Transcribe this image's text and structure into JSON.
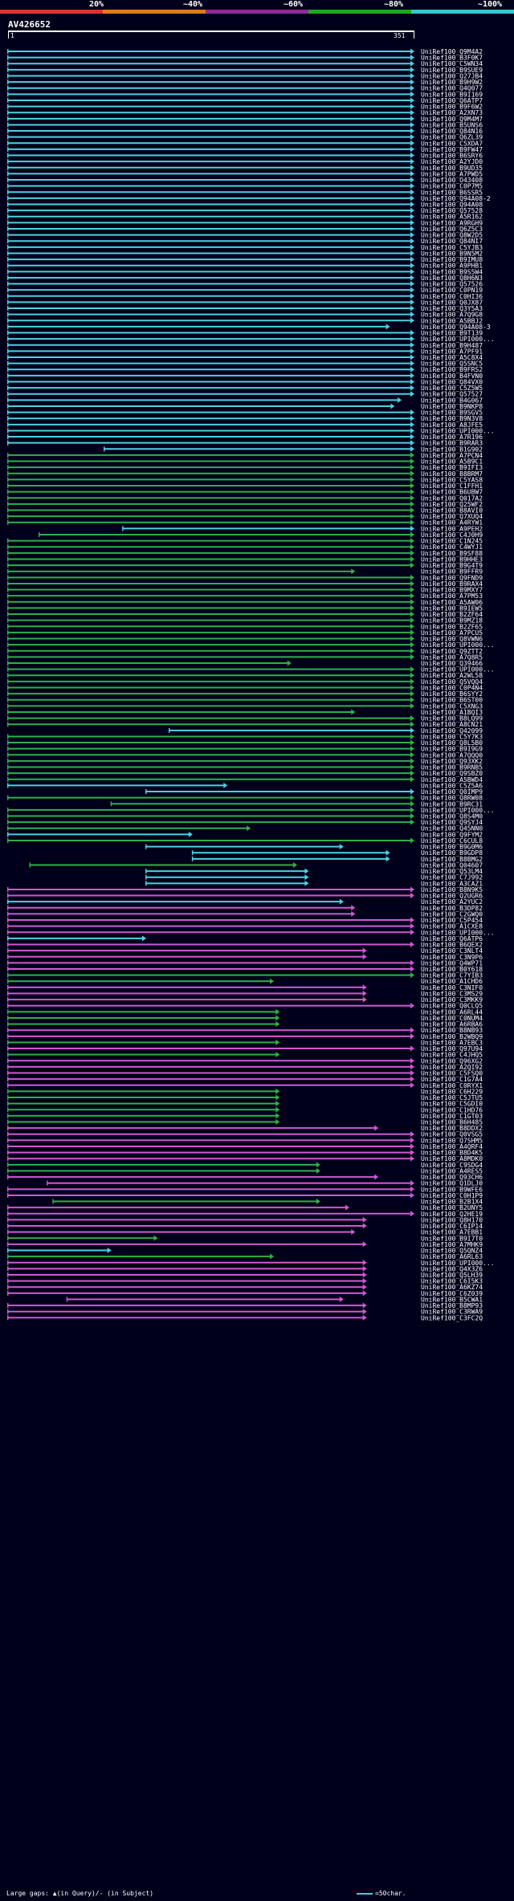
{
  "legend": {
    "items": [
      {
        "label": "20%",
        "color": "#e03030"
      },
      {
        "label": "~40%",
        "color": "#e07a1a"
      },
      {
        "label": "~60%",
        "color": "#8f2a9a"
      },
      {
        "label": "~80%",
        "color": "#1ea81e"
      },
      {
        "label": "~100%",
        "color": "#34c6d2"
      }
    ]
  },
  "query": {
    "title": "AV426652",
    "start_label": "1",
    "end_label": "351",
    "length": 351
  },
  "footer": {
    "gaps_text": "Large gaps: ▲(in Query)/- (in Subject)",
    "scale_text": "=50char."
  },
  "colors": {
    "cyan": "#4fd0e0",
    "green": "#2fb04a",
    "magenta": "#d058d0",
    "blue": "#3a4aa0",
    "white": "#ffffff"
  },
  "chart_data": {
    "type": "alignment",
    "query_length": 351,
    "hits": [
      [
        "UniRef100_Q9M4A2",
        1,
        351,
        "c"
      ],
      [
        "UniRef100_B3F0K7",
        1,
        351,
        "c"
      ],
      [
        "UniRef100_C5WN34",
        1,
        351,
        "c"
      ],
      [
        "UniRef100_B9SUE9",
        1,
        351,
        "c"
      ],
      [
        "UniRef100_Q27JB4",
        1,
        351,
        "c"
      ],
      [
        "UniRef100_B9H9W2",
        1,
        351,
        "c"
      ],
      [
        "UniRef100_Q4Q077",
        1,
        351,
        "c"
      ],
      [
        "UniRef100_B9I169",
        1,
        351,
        "c"
      ],
      [
        "UniRef100_Q6ATP7",
        1,
        351,
        "c"
      ],
      [
        "UniRef100_B9F6W2",
        1,
        351,
        "c"
      ],
      [
        "UniRef100_A2XN73",
        1,
        351,
        "c"
      ],
      [
        "UniRef100_Q9M4M7",
        1,
        351,
        "c"
      ],
      [
        "UniRef100_B5UNS6",
        1,
        351,
        "c"
      ],
      [
        "UniRef100_Q84N16",
        1,
        351,
        "c"
      ],
      [
        "UniRef100_Q6ZL39",
        1,
        351,
        "c"
      ],
      [
        "UniRef100_C5XDA7",
        1,
        351,
        "c"
      ],
      [
        "UniRef100_B9FW47",
        1,
        351,
        "c"
      ],
      [
        "UniRef100_B6SRY6",
        1,
        351,
        "c"
      ],
      [
        "UniRef100_A2YJD0",
        1,
        351,
        "c"
      ],
      [
        "UniRef100_B9UD35",
        1,
        351,
        "c"
      ],
      [
        "UniRef100_A7PWD5",
        1,
        351,
        "c"
      ],
      [
        "UniRef100_O43408",
        1,
        351,
        "c"
      ],
      [
        "UniRef100_C0P7M5",
        1,
        351,
        "c"
      ],
      [
        "UniRef100_B6SSR5",
        1,
        351,
        "c"
      ],
      [
        "UniRef100_Q94A08-2",
        1,
        351,
        "c"
      ],
      [
        "UniRef100_Q94A08",
        1,
        351,
        "c"
      ],
      [
        "UniRef100_Q57528",
        1,
        351,
        "c"
      ],
      [
        "UniRef100_A5R162",
        1,
        351,
        "c"
      ],
      [
        "UniRef100_A9RGH9",
        1,
        351,
        "c"
      ],
      [
        "UniRef100_Q6Z5C3",
        1,
        351,
        "c"
      ],
      [
        "UniRef100_Q8W2D5",
        1,
        351,
        "c"
      ],
      [
        "UniRef100_Q84NI7",
        1,
        351,
        "c"
      ],
      [
        "UniRef100_C5YJB3",
        1,
        351,
        "c"
      ],
      [
        "UniRef100_B9N5M2",
        1,
        351,
        "c"
      ],
      [
        "UniRef100_B9IMU8",
        1,
        351,
        "c"
      ],
      [
        "UniRef100_A9PHB1",
        1,
        351,
        "c"
      ],
      [
        "UniRef100_B9S5W4",
        1,
        351,
        "c"
      ],
      [
        "UniRef100_Q8H6N3",
        1,
        351,
        "c"
      ],
      [
        "UniRef100_Q57526",
        1,
        351,
        "c"
      ],
      [
        "UniRef100_C0PN19",
        1,
        351,
        "c"
      ],
      [
        "UniRef100_C0HI36",
        1,
        351,
        "c"
      ],
      [
        "UniRef100_Q0JX87",
        1,
        351,
        "c"
      ],
      [
        "UniRef100_Q3Y5A3",
        1,
        351,
        "c"
      ],
      [
        "UniRef100_A7Q9G8",
        1,
        351,
        "c"
      ],
      [
        "UniRef100_A5BBJ2",
        1,
        351,
        "c"
      ],
      [
        "UniRef100_Q94A08-3",
        1,
        330,
        "c"
      ],
      [
        "UniRef100_B9T139",
        1,
        351,
        "c"
      ],
      [
        "UniRef100_UPI000...",
        1,
        351,
        "c"
      ],
      [
        "UniRef100_B9H487",
        1,
        351,
        "c"
      ],
      [
        "UniRef100_A7PF91",
        1,
        351,
        "c"
      ],
      [
        "UniRef100_A5C8X4",
        1,
        351,
        "c"
      ],
      [
        "UniRef100_Q5SNC5",
        1,
        351,
        "c"
      ],
      [
        "UniRef100_B9FRS2",
        1,
        351,
        "c"
      ],
      [
        "UniRef100_B4FVN0",
        1,
        351,
        "c"
      ],
      [
        "UniRef100_Q84VX0",
        1,
        351,
        "c"
      ],
      [
        "UniRef100_C5Z5W5",
        1,
        351,
        "c"
      ],
      [
        "UniRef100_Q57527",
        1,
        351,
        "c"
      ],
      [
        "UniRef100_B4G067",
        1,
        340,
        "c"
      ],
      [
        "UniRef100_B9NKP8",
        1,
        334,
        "c"
      ],
      [
        "UniRef100_B9SGV5",
        1,
        351,
        "c"
      ],
      [
        "UniRef100_B9N3V8",
        1,
        351,
        "c"
      ],
      [
        "UniRef100_A8JFE5",
        1,
        351,
        "c"
      ],
      [
        "UniRef100_UPI000...",
        1,
        351,
        "c"
      ],
      [
        "UniRef100_A7R196",
        1,
        351,
        "c"
      ],
      [
        "UniRef100_B9RAR3",
        1,
        351,
        "c"
      ],
      [
        "UniRef100_B1G902",
        84,
        351,
        "c"
      ],
      [
        "UniRef100_A7PCN4",
        1,
        351,
        "g"
      ],
      [
        "UniRef100_A5B9C1",
        1,
        351,
        "g"
      ],
      [
        "UniRef100_B9IFI3",
        1,
        351,
        "g"
      ],
      [
        "UniRef100_B8BRM7",
        1,
        351,
        "g"
      ],
      [
        "UniRef100_C5YAS8",
        1,
        351,
        "g"
      ],
      [
        "UniRef100_C1FFH1",
        1,
        351,
        "g"
      ],
      [
        "UniRef100_B6UBW7",
        1,
        351,
        "g"
      ],
      [
        "UniRef100_Q017A2",
        1,
        351,
        "g"
      ],
      [
        "UniRef100_Q25WF2",
        1,
        351,
        "g"
      ],
      [
        "UniRef100_B8AVI0",
        1,
        351,
        "g"
      ],
      [
        "UniRef100_Q7XUQ4",
        1,
        351,
        "g"
      ],
      [
        "UniRef100_A4RYW1",
        1,
        351,
        "g"
      ],
      [
        "UniRef100_A9PEH2",
        100,
        351,
        "c"
      ],
      [
        "UniRef100_C4J0H9",
        28,
        351,
        "g"
      ],
      [
        "UniRef100_C1N245",
        1,
        351,
        "g"
      ],
      [
        "UniRef100_C4WYJ1",
        1,
        351,
        "g"
      ],
      [
        "UniRef100_B9SF88",
        1,
        351,
        "g"
      ],
      [
        "UniRef100_B9HHE3",
        1,
        351,
        "g"
      ],
      [
        "UniRef100_B9G4T9",
        1,
        351,
        "g"
      ],
      [
        "UniRef100_B9FFR9",
        1,
        300,
        "g"
      ],
      [
        "UniRef100_Q9FND9",
        1,
        351,
        "g"
      ],
      [
        "UniRef100_B9RAX4",
        1,
        351,
        "g"
      ],
      [
        "UniRef100_B9MXY7",
        1,
        351,
        "g"
      ],
      [
        "UniRef100_A7PM53",
        1,
        351,
        "g"
      ],
      [
        "UniRef100_A5AW06",
        1,
        351,
        "g"
      ],
      [
        "UniRef100_B9IEW5",
        1,
        351,
        "g"
      ],
      [
        "UniRef100_B2ZF64",
        1,
        351,
        "g"
      ],
      [
        "UniRef100_B9MZ18",
        1,
        351,
        "g"
      ],
      [
        "UniRef100_B2ZF65",
        1,
        351,
        "g"
      ],
      [
        "UniRef100_A7PCU5",
        1,
        351,
        "g"
      ],
      [
        "UniRef100_Q8VWN6",
        1,
        351,
        "g"
      ],
      [
        "UniRef100_UPI000...",
        1,
        351,
        "g"
      ],
      [
        "UniRef100_Q9ZTT2",
        1,
        351,
        "g"
      ],
      [
        "UniRef100_A7Q8R5",
        1,
        351,
        "g"
      ],
      [
        "UniRef100_Q39466",
        1,
        245,
        "g"
      ],
      [
        "UniRef100_UPI000...",
        1,
        351,
        "g"
      ],
      [
        "UniRef100_A2WL58",
        1,
        351,
        "g"
      ],
      [
        "UniRef100_Q5VQQ4",
        1,
        351,
        "g"
      ],
      [
        "UniRef100_C0P4N4",
        1,
        351,
        "g"
      ],
      [
        "UniRef100_B6SYY2",
        1,
        351,
        "g"
      ],
      [
        "UniRef100_B6ST00",
        1,
        351,
        "g"
      ],
      [
        "UniRef100_C5XNG3",
        1,
        351,
        "g"
      ],
      [
        "UniRef100_A1BQI3",
        1,
        300,
        "g"
      ],
      [
        "UniRef100_B8LQ99",
        1,
        351,
        "g"
      ],
      [
        "UniRef100_A8CN21",
        1,
        351,
        "g"
      ],
      [
        "UniRef100_Q42099",
        140,
        351,
        "c"
      ],
      [
        "UniRef100_C5Y7K3",
        1,
        351,
        "g"
      ],
      [
        "UniRef100_Q8L5B0",
        1,
        351,
        "g"
      ],
      [
        "UniRef100_B9I9G9",
        1,
        351,
        "g"
      ],
      [
        "UniRef100_A7QQQ0",
        1,
        351,
        "g"
      ],
      [
        "UniRef100_Q93XK2",
        1,
        351,
        "g"
      ],
      [
        "UniRef100_B9RNB5",
        1,
        351,
        "g"
      ],
      [
        "UniRef100_Q9SBZ0",
        1,
        351,
        "g"
      ],
      [
        "UniRef100_A5BWD4",
        1,
        351,
        "g"
      ],
      [
        "UniRef100_C5Z5A6",
        1,
        190,
        "c"
      ],
      [
        "UniRef100_Q0IMP9",
        120,
        351,
        "c"
      ],
      [
        "UniRef100_Q8RW08",
        1,
        351,
        "g"
      ],
      [
        "UniRef100_B9RC31",
        90,
        351,
        "g"
      ],
      [
        "UniRef100_UPI000...",
        1,
        351,
        "g"
      ],
      [
        "UniRef100_Q8S4M0",
        1,
        351,
        "g"
      ],
      [
        "UniRef100_Q9SYJ4",
        1,
        351,
        "g"
      ],
      [
        "UniRef100_Q45NN0",
        1,
        210,
        "g"
      ],
      [
        "UniRef100_Q9FYM2",
        1,
        160,
        "c"
      ],
      [
        "UniRef100_C6CUL8",
        1,
        351,
        "g"
      ],
      [
        "UniRef100_B9G0M6",
        120,
        290,
        "c"
      ],
      [
        "UniRef100_B9GDP8",
        160,
        330,
        "c"
      ],
      [
        "UniRef100_B8BMG2",
        160,
        330,
        "c"
      ],
      [
        "UniRef100_Q04607",
        20,
        250,
        "g"
      ],
      [
        "UniRef100_Q53LM4",
        120,
        260,
        "c"
      ],
      [
        "UniRef100_C7J992",
        120,
        260,
        "c"
      ],
      [
        "UniRef100_A3CAZ1",
        120,
        260,
        "c"
      ],
      [
        "UniRef100_B8N9K5",
        1,
        351,
        "m"
      ],
      [
        "UniRef100_Q2UGR6",
        1,
        351,
        "m"
      ],
      [
        "UniRef100_A2YUC2",
        1,
        290,
        "c"
      ],
      [
        "UniRef100_B3DP82",
        1,
        300,
        "m"
      ],
      [
        "UniRef100_C2GWQ0",
        1,
        300,
        "m"
      ],
      [
        "UniRef100_C5P454",
        1,
        351,
        "m"
      ],
      [
        "UniRef100_A1CXE8",
        1,
        351,
        "m"
      ],
      [
        "UniRef100_UPI000...",
        1,
        351,
        "m"
      ],
      [
        "UniRef100_Q6ATP6",
        1,
        120,
        "c"
      ],
      [
        "UniRef100_B6QEX2",
        1,
        351,
        "m"
      ],
      [
        "UniRef100_C3NLT4",
        1,
        310,
        "m"
      ],
      [
        "UniRef100_C3N9P6",
        1,
        310,
        "m"
      ],
      [
        "UniRef100_Q4WP71",
        1,
        351,
        "m"
      ],
      [
        "UniRef100_B0Y618",
        1,
        351,
        "m"
      ],
      [
        "UniRef100_C7YIB3",
        1,
        351,
        "g"
      ],
      [
        "UniRef100_A1CHD6",
        1,
        230,
        "g"
      ],
      [
        "UniRef100_C3NIF0",
        1,
        310,
        "m"
      ],
      [
        "UniRef100_C3MS29",
        1,
        310,
        "m"
      ],
      [
        "UniRef100_C3MKK9",
        1,
        310,
        "m"
      ],
      [
        "UniRef100_Q0CLQ5",
        1,
        351,
        "m"
      ],
      [
        "UniRef100_A6RL44",
        1,
        235,
        "g"
      ],
      [
        "UniRef100_C0NUM4",
        1,
        235,
        "g"
      ],
      [
        "UniRef100_A6RBA6",
        1,
        235,
        "g"
      ],
      [
        "UniRef100_B8NB93",
        1,
        351,
        "m"
      ],
      [
        "UniRef100_B2WBQ9",
        1,
        351,
        "m"
      ],
      [
        "UniRef100_A7EBC3",
        1,
        235,
        "g"
      ],
      [
        "UniRef100_Q97U94",
        1,
        351,
        "m"
      ],
      [
        "UniRef100_C4JHQ5",
        1,
        235,
        "g"
      ],
      [
        "UniRef100_Q96XG2",
        1,
        351,
        "m"
      ],
      [
        "UniRef100_A2QI92",
        1,
        351,
        "m"
      ],
      [
        "UniRef100_C5FSQ0",
        1,
        351,
        "m"
      ],
      [
        "UniRef100_C1G7A4",
        1,
        351,
        "m"
      ],
      [
        "UniRef100_C0RYX1",
        1,
        351,
        "m"
      ],
      [
        "UniRef100_C6H229",
        1,
        235,
        "g"
      ],
      [
        "UniRef100_C5JTU5",
        1,
        235,
        "g"
      ],
      [
        "UniRef100_C5GDI0",
        1,
        235,
        "g"
      ],
      [
        "UniRef100_C1HD76",
        1,
        235,
        "g"
      ],
      [
        "UniRef100_C1GT03",
        1,
        235,
        "g"
      ],
      [
        "UniRef100_B6H485",
        1,
        235,
        "g"
      ],
      [
        "UniRef100_B8DDX2",
        1,
        320,
        "m"
      ],
      [
        "UniRef100_Q0VSG5",
        1,
        351,
        "m"
      ],
      [
        "UniRef100_Q7SHM5",
        1,
        351,
        "m"
      ],
      [
        "UniRef100_A4QRF4",
        1,
        351,
        "m"
      ],
      [
        "UniRef100_B8D4K5",
        1,
        351,
        "m"
      ],
      [
        "UniRef100_A8MDK0",
        1,
        351,
        "m"
      ],
      [
        "UniRef100_C9SDG4",
        1,
        270,
        "g"
      ],
      [
        "UniRef100_A4RES5",
        1,
        270,
        "g"
      ],
      [
        "UniRef100_Q93CH6",
        1,
        320,
        "m"
      ],
      [
        "UniRef100_Q1DLJ0",
        35,
        351,
        "m"
      ],
      [
        "UniRef100_B9WFE6",
        1,
        351,
        "m"
      ],
      [
        "UniRef100_C0H1P9",
        1,
        351,
        "m"
      ],
      [
        "UniRef100_B2B1X4",
        40,
        270,
        "g"
      ],
      [
        "UniRef100_B2UNY5",
        1,
        295,
        "m"
      ],
      [
        "UniRef100_Q2HE19",
        1,
        351,
        "m"
      ],
      [
        "UniRef100_Q8H170",
        1,
        310,
        "m"
      ],
      [
        "UniRef100_C6IP14",
        1,
        310,
        "m"
      ],
      [
        "UniRef100_A7EBB1",
        1,
        300,
        "m"
      ],
      [
        "UniRef100_B9I7T0",
        1,
        130,
        "g"
      ],
      [
        "UniRef100_A7MHK9",
        1,
        310,
        "m"
      ],
      [
        "UniRef100_Q5QNZ4",
        1,
        90,
        "c"
      ],
      [
        "UniRef100_A6RL63",
        1,
        230,
        "g"
      ],
      [
        "UniRef100_UPI000...",
        1,
        310,
        "m"
      ],
      [
        "UniRef100_Q4X3Z6",
        1,
        310,
        "m"
      ],
      [
        "UniRef100_Q5LH39",
        1,
        310,
        "m"
      ],
      [
        "UniRef100_C6I5K3",
        1,
        310,
        "m"
      ],
      [
        "UniRef100_A6KZ74",
        1,
        310,
        "m"
      ],
      [
        "UniRef100_C6Z039",
        1,
        310,
        "m"
      ],
      [
        "UniRef100_B5CWA1",
        52,
        290,
        "m"
      ],
      [
        "UniRef100_B8MP93",
        1,
        310,
        "m"
      ],
      [
        "UniRef100_C3RWA9",
        1,
        310,
        "m"
      ],
      [
        "UniRef100_C3FC2Q",
        1,
        310,
        "m"
      ]
    ]
  }
}
